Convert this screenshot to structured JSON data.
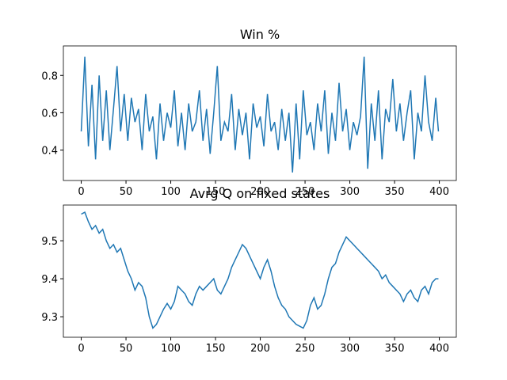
{
  "chart_data": [
    {
      "type": "line",
      "title": "Win %",
      "x": [
        0,
        4,
        8,
        12,
        16,
        20,
        24,
        28,
        32,
        36,
        40,
        44,
        48,
        52,
        56,
        60,
        64,
        68,
        72,
        76,
        80,
        84,
        88,
        92,
        96,
        100,
        104,
        108,
        112,
        116,
        120,
        124,
        128,
        132,
        136,
        140,
        144,
        148,
        152,
        156,
        160,
        164,
        168,
        172,
        176,
        180,
        184,
        188,
        192,
        196,
        200,
        204,
        208,
        212,
        216,
        220,
        224,
        228,
        232,
        236,
        240,
        244,
        248,
        252,
        256,
        260,
        264,
        268,
        272,
        276,
        280,
        284,
        288,
        292,
        296,
        300,
        304,
        308,
        312,
        316,
        320,
        324,
        328,
        332,
        336,
        340,
        344,
        348,
        352,
        356,
        360,
        364,
        368,
        372,
        376,
        380,
        384,
        388,
        392,
        396,
        399
      ],
      "series": [
        {
          "color": "#1f77b4",
          "values": [
            0.5,
            0.9,
            0.42,
            0.75,
            0.35,
            0.8,
            0.45,
            0.72,
            0.4,
            0.62,
            0.85,
            0.5,
            0.7,
            0.45,
            0.68,
            0.55,
            0.62,
            0.4,
            0.7,
            0.5,
            0.58,
            0.35,
            0.65,
            0.45,
            0.6,
            0.52,
            0.72,
            0.42,
            0.6,
            0.4,
            0.65,
            0.5,
            0.55,
            0.72,
            0.45,
            0.62,
            0.38,
            0.6,
            0.85,
            0.45,
            0.55,
            0.5,
            0.7,
            0.4,
            0.62,
            0.48,
            0.6,
            0.35,
            0.65,
            0.52,
            0.58,
            0.42,
            0.7,
            0.5,
            0.55,
            0.4,
            0.62,
            0.45,
            0.6,
            0.28,
            0.65,
            0.35,
            0.72,
            0.48,
            0.55,
            0.4,
            0.65,
            0.5,
            0.72,
            0.38,
            0.6,
            0.45,
            0.76,
            0.5,
            0.62,
            0.4,
            0.55,
            0.48,
            0.58,
            0.9,
            0.3,
            0.65,
            0.45,
            0.72,
            0.35,
            0.62,
            0.55,
            0.78,
            0.5,
            0.65,
            0.45,
            0.6,
            0.72,
            0.35,
            0.6,
            0.5,
            0.8,
            0.55,
            0.45,
            0.68,
            0.5
          ]
        }
      ],
      "xlim": [
        -19.95,
        418.95
      ],
      "ylim": [
        0.237,
        0.958
      ],
      "xticks": [
        0,
        50,
        100,
        150,
        200,
        250,
        300,
        350,
        400
      ],
      "yticks": [
        0.4,
        0.6,
        0.8
      ]
    },
    {
      "type": "line",
      "title": "Avrg Q on fixed states",
      "x": [
        0,
        4,
        8,
        12,
        16,
        20,
        24,
        28,
        32,
        36,
        40,
        44,
        48,
        52,
        56,
        60,
        64,
        68,
        72,
        76,
        80,
        84,
        88,
        92,
        96,
        100,
        104,
        108,
        112,
        116,
        120,
        124,
        128,
        132,
        136,
        140,
        144,
        148,
        152,
        156,
        160,
        164,
        168,
        172,
        176,
        180,
        184,
        188,
        192,
        196,
        200,
        204,
        208,
        212,
        216,
        220,
        224,
        228,
        232,
        236,
        240,
        244,
        248,
        252,
        256,
        260,
        264,
        268,
        272,
        276,
        280,
        284,
        288,
        292,
        296,
        300,
        304,
        308,
        312,
        316,
        320,
        324,
        328,
        332,
        336,
        340,
        344,
        348,
        352,
        356,
        360,
        364,
        368,
        372,
        376,
        380,
        384,
        388,
        392,
        396,
        399
      ],
      "series": [
        {
          "color": "#1f77b4",
          "values": [
            9.57,
            9.575,
            9.55,
            9.53,
            9.54,
            9.52,
            9.53,
            9.5,
            9.48,
            9.49,
            9.47,
            9.48,
            9.45,
            9.42,
            9.4,
            9.37,
            9.39,
            9.38,
            9.35,
            9.3,
            9.27,
            9.28,
            9.3,
            9.32,
            9.335,
            9.32,
            9.34,
            9.38,
            9.37,
            9.36,
            9.34,
            9.33,
            9.36,
            9.38,
            9.37,
            9.38,
            9.39,
            9.4,
            9.37,
            9.36,
            9.38,
            9.4,
            9.43,
            9.45,
            9.47,
            9.49,
            9.48,
            9.46,
            9.44,
            9.42,
            9.4,
            9.43,
            9.45,
            9.42,
            9.38,
            9.35,
            9.33,
            9.32,
            9.3,
            9.29,
            9.28,
            9.275,
            9.27,
            9.29,
            9.33,
            9.35,
            9.32,
            9.33,
            9.36,
            9.4,
            9.43,
            9.44,
            9.47,
            9.49,
            9.51,
            9.5,
            9.49,
            9.48,
            9.47,
            9.46,
            9.45,
            9.44,
            9.43,
            9.42,
            9.4,
            9.41,
            9.39,
            9.38,
            9.37,
            9.36,
            9.34,
            9.36,
            9.37,
            9.35,
            9.34,
            9.37,
            9.38,
            9.36,
            9.39,
            9.4,
            9.4
          ]
        }
      ],
      "xlim": [
        -19.95,
        418.95
      ],
      "ylim": [
        9.246,
        9.594
      ],
      "xticks": [
        0,
        50,
        100,
        150,
        200,
        250,
        300,
        350,
        400
      ],
      "yticks": [
        9.3,
        9.4,
        9.5
      ]
    }
  ]
}
